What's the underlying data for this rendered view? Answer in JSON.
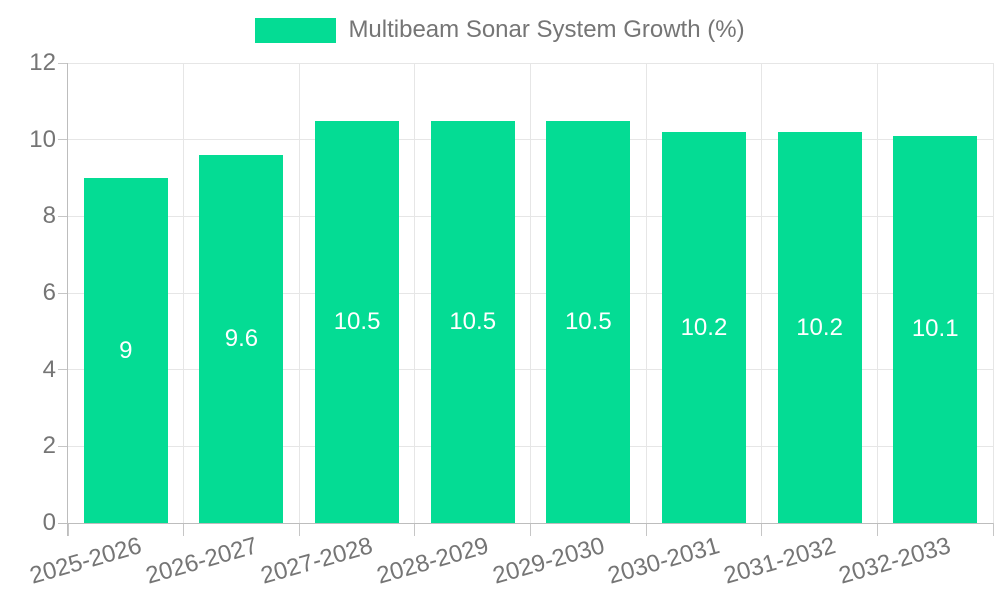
{
  "legend": {
    "label": "Multibeam Sonar System Growth (%)"
  },
  "colors": {
    "bar": "#04DC94",
    "grid": "#e6e6e6",
    "axis": "#bdbdbd",
    "tick": "#c6c6c6",
    "tick_text": "#757575",
    "value_text": "#ffffff",
    "background": "#ffffff"
  },
  "chart_data": {
    "type": "bar",
    "title": "",
    "series_name": "Multibeam Sonar System Growth (%)",
    "categories": [
      "2025-2026",
      "2026-2027",
      "2027-2028",
      "2028-2029",
      "2029-2030",
      "2030-2031",
      "2031-2032",
      "2032-2033"
    ],
    "values": [
      9,
      9.6,
      10.5,
      10.5,
      10.5,
      10.2,
      10.2,
      10.1
    ],
    "value_labels": [
      "9",
      "9.6",
      "10.5",
      "10.5",
      "10.5",
      "10.2",
      "10.2",
      "10.1"
    ],
    "xlabel": "",
    "ylabel": "",
    "ylim": [
      0,
      12
    ],
    "yticks": [
      0,
      2,
      4,
      6,
      8,
      10,
      12
    ],
    "grid": "on",
    "legend_position": "top-center",
    "value_label_position": "center-of-bar"
  }
}
